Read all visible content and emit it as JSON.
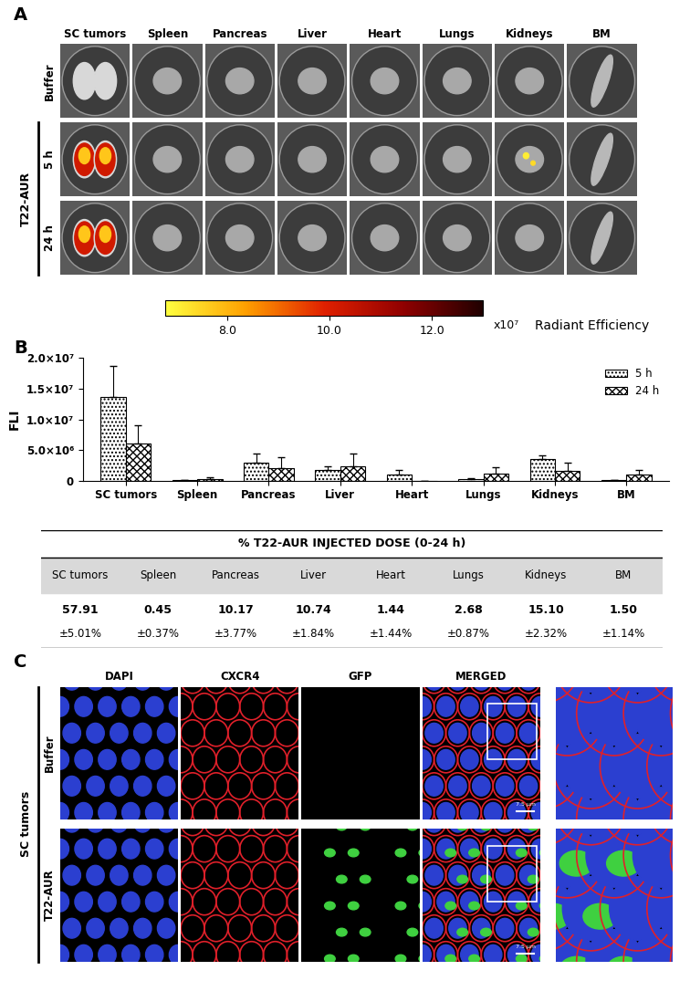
{
  "panels": [
    "A",
    "B",
    "C"
  ],
  "panel_a": {
    "organs": [
      "SC tumors",
      "Spleen",
      "Pancreas",
      "Liver",
      "Heart",
      "Lungs",
      "Kidneys",
      "BM"
    ],
    "rows": [
      "Buffer",
      "5 h",
      "24 h"
    ],
    "group": "T22-AUR",
    "colorbar": {
      "range": [
        6.8,
        13.0
      ],
      "ticks": [
        {
          "value": 8.0,
          "label": "8.0"
        },
        {
          "value": 10.0,
          "label": "10.0"
        },
        {
          "value": 12.0,
          "label": "12.0"
        }
      ],
      "multiplier": "x10⁷",
      "label": "Radiant Efficiency"
    }
  },
  "chart_data": {
    "type": "bar",
    "ylabel": "FLI",
    "categories": [
      "SC tumors",
      "Spleen",
      "Pancreas",
      "Liver",
      "Heart",
      "Lungs",
      "Kidneys",
      "BM"
    ],
    "series": [
      {
        "name": "5 h",
        "color": "#ffffff",
        "values": [
          13700000,
          50000,
          3000000,
          1700000,
          1000000,
          300000,
          3600000,
          100000
        ],
        "errors": [
          5000000,
          30000,
          1500000,
          600000,
          700000,
          100000,
          600000,
          50000
        ]
      },
      {
        "name": "24 h",
        "color": "#ffffff",
        "values": [
          6100000,
          300000,
          2000000,
          2300000,
          0,
          1200000,
          1600000,
          1000000
        ],
        "errors": [
          2900000,
          250000,
          1800000,
          2100000,
          0,
          1000000,
          1300000,
          800000
        ]
      }
    ],
    "ylim": [
      0,
      20000000
    ],
    "yticks": [
      0,
      {
        "value": 5000000,
        "label": "5.0×10⁶"
      },
      {
        "value": 10000000,
        "label": "1.0×10⁷"
      },
      {
        "value": 15000000,
        "label": "1.5×10⁷"
      },
      {
        "value": 20000000,
        "label": "2.0×10⁷"
      }
    ],
    "legend": "upper right"
  },
  "table": {
    "title": "% T22-AUR INJECTED DOSE (0-24 h)",
    "columns": [
      "SC tumors",
      "Spleen",
      "Pancreas",
      "Liver",
      "Heart",
      "Lungs",
      "Kidneys",
      "BM"
    ],
    "values": [
      "57.91",
      "0.45",
      "10.17",
      "10.74",
      "1.44",
      "2.68",
      "15.10",
      "1.50"
    ],
    "errors": [
      "±5.01%",
      "±0.37%",
      "±3.77%",
      "±1.84%",
      "±1.44%",
      "±0.87%",
      "±2.32%",
      "±1.14%"
    ]
  },
  "panel_c": {
    "side_label": "SC tumors",
    "rows": [
      "Buffer",
      "T22-AUR"
    ],
    "columns": [
      "DAPI",
      "CXCR4",
      "GFP",
      "MERGED"
    ],
    "scale_bar": "7.5 μm"
  }
}
